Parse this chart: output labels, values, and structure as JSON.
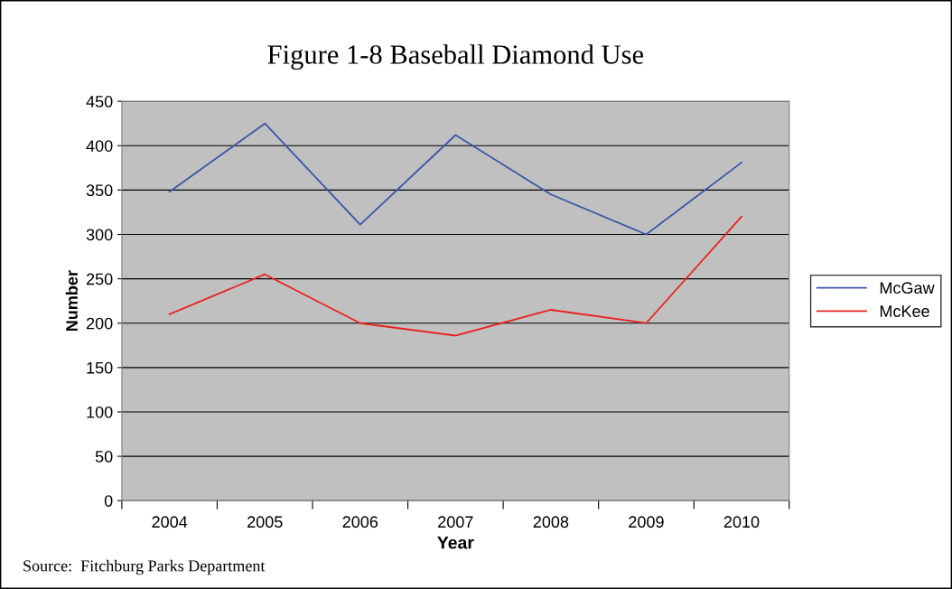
{
  "chart_data": {
    "type": "line",
    "title": "Figure 1-8 Baseball Diamond Use",
    "xlabel": "Year",
    "ylabel": "Number",
    "categories": [
      "2004",
      "2005",
      "2006",
      "2007",
      "2008",
      "2009",
      "2010"
    ],
    "series": [
      {
        "name": "McGaw",
        "color": "#3a56a8",
        "values": [
          348,
          425,
          311,
          412,
          345,
          300,
          381
        ]
      },
      {
        "name": "McKee",
        "color": "#e8221e",
        "values": [
          210,
          255,
          200,
          186,
          215,
          200,
          320
        ]
      }
    ],
    "ylim": [
      0,
      450
    ],
    "yticks": [
      0,
      50,
      100,
      150,
      200,
      250,
      300,
      350,
      400,
      450
    ],
    "grid": "y",
    "legend": "right",
    "marker": "none",
    "line_style": "solid",
    "annotations": [
      "Source:  Fitchburg Parks Department"
    ]
  }
}
